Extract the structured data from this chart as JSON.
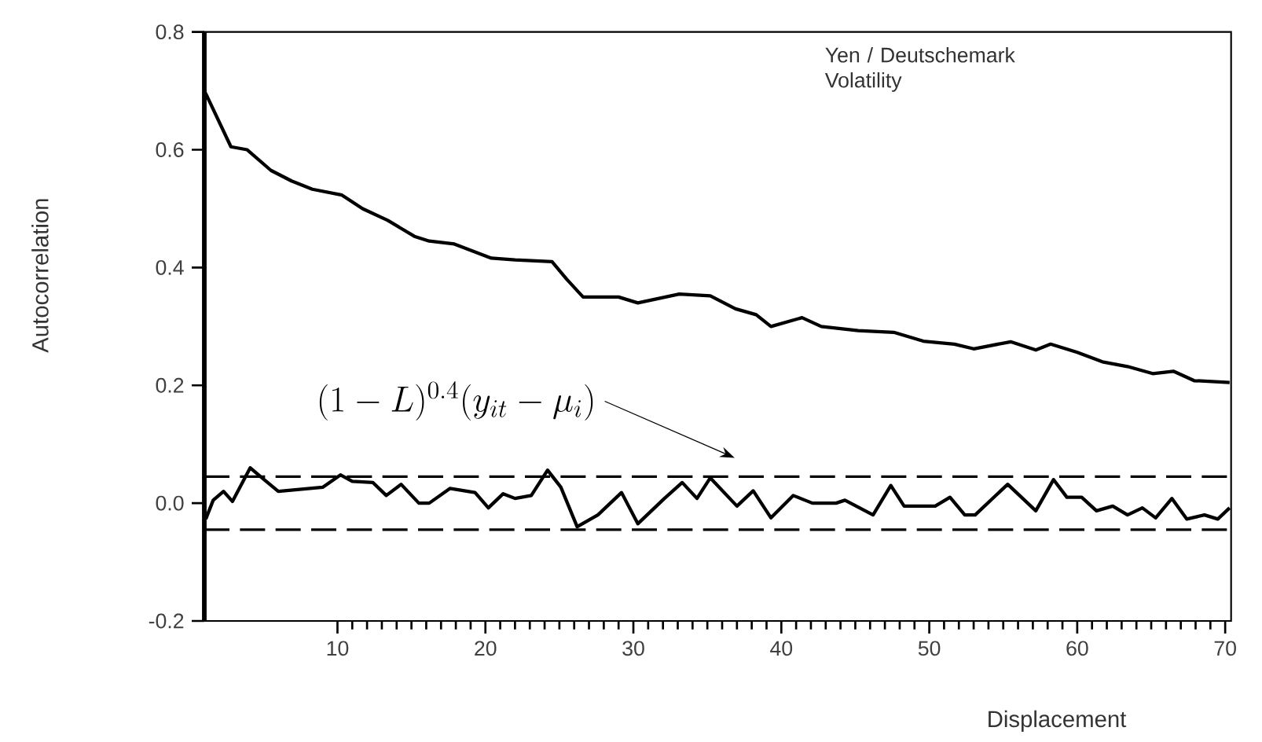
{
  "chart_data": {
    "type": "line",
    "title": "Yen / Deutschemark Volatility",
    "xlabel": "Displacement",
    "ylabel": "Autocorrelation",
    "xlim": [
      1,
      70.4
    ],
    "ylim": [
      -0.2,
      0.8
    ],
    "xticks": [
      10,
      20,
      30,
      40,
      50,
      60,
      70
    ],
    "yticks": [
      {
        "value": -0.2,
        "label": "-0.2"
      },
      {
        "value": 0,
        "label": "0.0"
      },
      {
        "value": 0.2,
        "label": "0.2"
      },
      {
        "value": 0.4,
        "label": "0.4"
      },
      {
        "value": 0.6,
        "label": "0.6"
      },
      {
        "value": 0.8,
        "label": "0.8"
      }
    ],
    "series": [
      {
        "color": "#000000",
        "x": [
          1,
          1.2,
          2.8,
          3.9,
          5.5,
          6.9,
          8.3,
          10.3,
          11.7,
          13.4,
          15.2,
          16.2,
          17.9,
          20.4,
          22,
          24.5,
          25.5,
          26.6,
          29,
          30.3,
          33.1,
          35.2,
          36.9,
          38.3,
          39.3,
          41.4,
          42.7,
          45.2,
          47.6,
          49.6,
          51.7,
          53,
          55.5,
          57.2,
          58.2,
          60,
          61.7,
          63.4,
          65.1,
          66.5,
          67.9,
          70.3
        ],
        "values": [
          0.7,
          0.69,
          0.605,
          0.6,
          0.565,
          0.547,
          0.533,
          0.523,
          0.5,
          0.48,
          0.453,
          0.445,
          0.44,
          0.416,
          0.413,
          0.41,
          0.38,
          0.35,
          0.35,
          0.34,
          0.355,
          0.352,
          0.33,
          0.32,
          0.3,
          0.315,
          0.3,
          0.293,
          0.29,
          0.275,
          0.27,
          0.262,
          0.274,
          0.26,
          0.27,
          0.256,
          0.24,
          0.232,
          0.22,
          0.224,
          0.208,
          0.205
        ]
      },
      {
        "color": "#000000",
        "x": [
          1.1,
          1.6,
          2.3,
          2.9,
          4.1,
          4.8,
          6,
          9,
          10.2,
          11,
          12.4,
          13.3,
          14.3,
          15.5,
          16.2,
          17.6,
          19.3,
          20.2,
          21.2,
          22,
          23.1,
          24.2,
          25.1,
          26.2,
          27.6,
          29.2,
          30.3,
          32.1,
          33.3,
          34.3,
          35.2,
          37,
          38.1,
          39.3,
          40.8,
          42.1,
          43.7,
          44.3,
          46.2,
          47.4,
          48.3,
          50.4,
          51.4,
          52.4,
          53.1,
          55.3,
          57.2,
          58.4,
          59.3,
          60.3,
          61.3,
          62.4,
          63.4,
          64.4,
          65.3,
          66.4,
          67.4,
          68.6,
          69.5,
          70.3
        ],
        "values": [
          -0.027,
          0.005,
          0.02,
          0.003,
          0.06,
          0.045,
          0.02,
          0.027,
          0.048,
          0.037,
          0.035,
          0.013,
          0.032,
          0,
          0,
          0.025,
          0.018,
          -0.008,
          0.016,
          0.008,
          0.013,
          0.056,
          0.027,
          -0.04,
          -0.02,
          0.018,
          -0.035,
          0.008,
          0.035,
          0.008,
          0.043,
          -0.005,
          0.021,
          -0.025,
          0.013,
          0,
          0,
          0.005,
          -0.02,
          0.03,
          -0.005,
          -0.005,
          0.01,
          -0.02,
          -0.02,
          0.032,
          -0.013,
          0.04,
          0.01,
          0.01,
          -0.013,
          -0.005,
          -0.02,
          -0.008,
          -0.025,
          0.008,
          -0.027,
          -0.02,
          -0.027,
          -0.008
        ]
      }
    ],
    "ref_lines": [
      {
        "axis": "y",
        "value": 0.045,
        "color": "#000000",
        "line_style": "dashed"
      },
      {
        "axis": "y",
        "value": -0.045,
        "color": "#000000",
        "line_style": "dashed"
      }
    ],
    "annotations": [
      "(1-L)^{0.4}(y_{it}-\\mu_i)"
    ]
  }
}
